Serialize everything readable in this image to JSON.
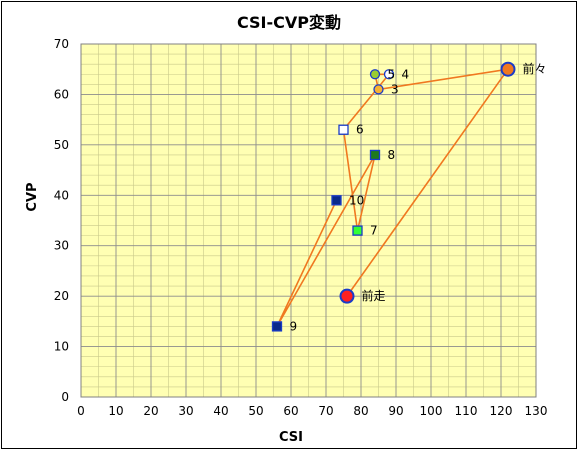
{
  "chart_data": {
    "type": "scatter",
    "title": "CSI-CVP変動",
    "xlabel": "CSI",
    "ylabel": "CVP",
    "xlim": [
      0,
      130
    ],
    "ylim": [
      0,
      70
    ],
    "x_major_step": 10,
    "y_major_step": 10,
    "grid": true,
    "minor_grid": true,
    "plot_background": "#ffffb3",
    "line_color": "#f07820",
    "x_ticks": [
      "0",
      "10",
      "20",
      "30",
      "40",
      "50",
      "60",
      "70",
      "80",
      "90",
      "100",
      "110",
      "120",
      "130"
    ],
    "y_ticks": [
      "0",
      "10",
      "20",
      "30",
      "40",
      "50",
      "60",
      "70"
    ],
    "path_order": [
      "前走",
      "前々",
      "3",
      "5",
      "4",
      "6",
      "7",
      "8",
      "9",
      "10"
    ],
    "points": [
      {
        "label": "前走",
        "x": 76,
        "y": 20,
        "marker": "circle",
        "fill": "#ff2020",
        "stroke": "#1a3cc8",
        "size": "large"
      },
      {
        "label": "前々",
        "x": 122,
        "y": 65,
        "marker": "circle",
        "fill": "#f07820",
        "stroke": "#1a3cc8",
        "size": "large"
      },
      {
        "label": "3",
        "x": 85,
        "y": 61,
        "marker": "circle",
        "fill": "#f7b234",
        "stroke": "#1a3cc8",
        "size": "small"
      },
      {
        "label": "4",
        "x": 88,
        "y": 64,
        "marker": "circle",
        "fill": "#ffffff",
        "stroke": "#1a3cc8",
        "size": "small"
      },
      {
        "label": "5",
        "x": 84,
        "y": 64,
        "marker": "circle",
        "fill": "#9acd32",
        "stroke": "#1a3cc8",
        "size": "small"
      },
      {
        "label": "6",
        "x": 75,
        "y": 53,
        "marker": "square",
        "fill": "#ffffff",
        "stroke": "#1a3cc8",
        "size": "small"
      },
      {
        "label": "7",
        "x": 79,
        "y": 33,
        "marker": "square",
        "fill": "#33ff33",
        "stroke": "#1a3cc8",
        "size": "small"
      },
      {
        "label": "8",
        "x": 84,
        "y": 48,
        "marker": "square",
        "fill": "#1e7a1e",
        "stroke": "#1a3cc8",
        "size": "small"
      },
      {
        "label": "9",
        "x": 56,
        "y": 14,
        "marker": "square",
        "fill": "#0a2a8a",
        "stroke": "#1a3cc8",
        "size": "small"
      },
      {
        "label": "10",
        "x": 73,
        "y": 39,
        "marker": "square",
        "fill": "#0a2a8a",
        "stroke": "#1a3cc8",
        "size": "small"
      }
    ]
  }
}
